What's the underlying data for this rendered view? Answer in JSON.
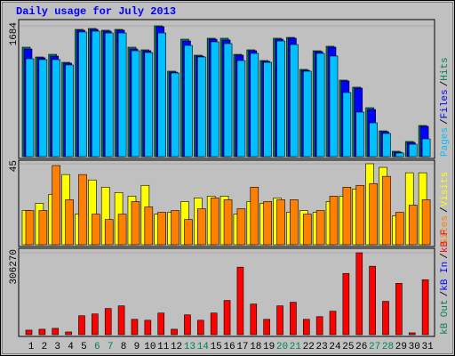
{
  "title": "Daily usage for July 2013",
  "legend_separator": "/",
  "chart_data": [
    {
      "type": "bar",
      "ylim": [
        0,
        1684
      ],
      "yticks": [
        1684
      ],
      "series": [
        {
          "name": "Hits",
          "color": "#00805c",
          "values": [
            1409,
            1283,
            1317,
            1214,
            1638,
            1650,
            1627,
            1638,
            1409,
            1375,
            1684,
            1100,
            1512,
            1306,
            1524,
            1524,
            1317,
            1375,
            1237,
            1524,
            1535,
            1123,
            1363,
            1421,
            985,
            894,
            630,
            332,
            69,
            195,
            401
          ]
        },
        {
          "name": "Files",
          "color": "#0000ff",
          "values": [
            1386,
            1272,
            1294,
            1203,
            1627,
            1638,
            1615,
            1627,
            1386,
            1363,
            1672,
            1088,
            1489,
            1294,
            1512,
            1501,
            1306,
            1363,
            1226,
            1512,
            1524,
            1111,
            1352,
            1409,
            974,
            882,
            607,
            321,
            57,
            183,
            390
          ]
        },
        {
          "name": "Pages",
          "color": "#00c0ff",
          "values": [
            1260,
            1249,
            1249,
            1180,
            1604,
            1615,
            1592,
            1592,
            1363,
            1340,
            1592,
            1077,
            1432,
            1283,
            1478,
            1455,
            1237,
            1329,
            1214,
            1489,
            1443,
            1100,
            1329,
            1295,
            825,
            573,
            435,
            298,
            46,
            160,
            229
          ]
        }
      ]
    },
    {
      "type": "bar",
      "ylim": [
        0,
        45
      ],
      "yticks": [
        45
      ],
      "series": [
        {
          "name": "Visits",
          "color": "#ffff00",
          "values": [
            19,
            23,
            28,
            39,
            17,
            36,
            32,
            29,
            27,
            33,
            17,
            18,
            24,
            26,
            27,
            27,
            17,
            24,
            23,
            26,
            18,
            19,
            18,
            24,
            27,
            31,
            45,
            43,
            16,
            40,
            40
          ]
        },
        {
          "name": "Sites",
          "color": "#ff8000",
          "values": [
            19,
            19,
            44,
            25,
            39,
            17,
            14,
            17,
            24,
            21,
            18,
            19,
            14,
            20,
            26,
            25,
            20,
            32,
            24,
            25,
            25,
            17,
            19,
            27,
            32,
            33,
            34,
            38,
            18,
            22,
            25
          ]
        }
      ]
    },
    {
      "type": "bar",
      "ylim": [
        0,
        306270
      ],
      "yticks": [
        306270
      ],
      "categories": [
        "1",
        "2",
        "3",
        "4",
        "5",
        "6",
        "7",
        "8",
        "9",
        "10",
        "11",
        "12",
        "13",
        "14",
        "15",
        "16",
        "17",
        "18",
        "19",
        "20",
        "21",
        "22",
        "23",
        "24",
        "25",
        "26",
        "27",
        "28",
        "29",
        "30",
        "31"
      ],
      "category_colors": [
        "#000000",
        "#000000",
        "#000000",
        "#000000",
        "#000000",
        "#00805c",
        "#00805c",
        "#000000",
        "#000000",
        "#000000",
        "#000000",
        "#000000",
        "#00805c",
        "#00805c",
        "#000000",
        "#000000",
        "#000000",
        "#000000",
        "#000000",
        "#00805c",
        "#00805c",
        "#000000",
        "#000000",
        "#000000",
        "#000000",
        "#000000",
        "#00805c",
        "#00805c",
        "#000000",
        "#000000",
        "#000000"
      ],
      "series": [
        {
          "name": "kB F",
          "color": "#ff0000",
          "values": [
            16828,
            20194,
            23559,
            10097,
            70678,
            77409,
            97602,
            107699,
            57215,
            53850,
            80774,
            20194,
            74043,
            53850,
            80774,
            127893,
            252420,
            114430,
            57215,
            107699,
            121162,
            57215,
            67312,
            87506,
            228861,
            306270,
            255786,
            124527,
            191839,
            6731,
            205302
          ]
        },
        {
          "name": "kB In",
          "color": "#0000ff",
          "values": [
            null,
            null,
            null,
            null,
            null,
            null,
            null,
            null,
            null,
            null,
            null,
            null,
            null,
            null,
            null,
            null,
            null,
            null,
            null,
            null,
            null,
            null,
            null,
            null,
            null,
            null,
            null,
            null,
            null,
            null,
            null
          ]
        },
        {
          "name": "kB Out",
          "color": "#00805c",
          "values": [
            null,
            null,
            null,
            null,
            null,
            null,
            null,
            null,
            null,
            null,
            null,
            null,
            null,
            null,
            null,
            null,
            null,
            null,
            null,
            null,
            null,
            null,
            null,
            null,
            null,
            null,
            null,
            null,
            null,
            null,
            null
          ]
        }
      ]
    }
  ]
}
